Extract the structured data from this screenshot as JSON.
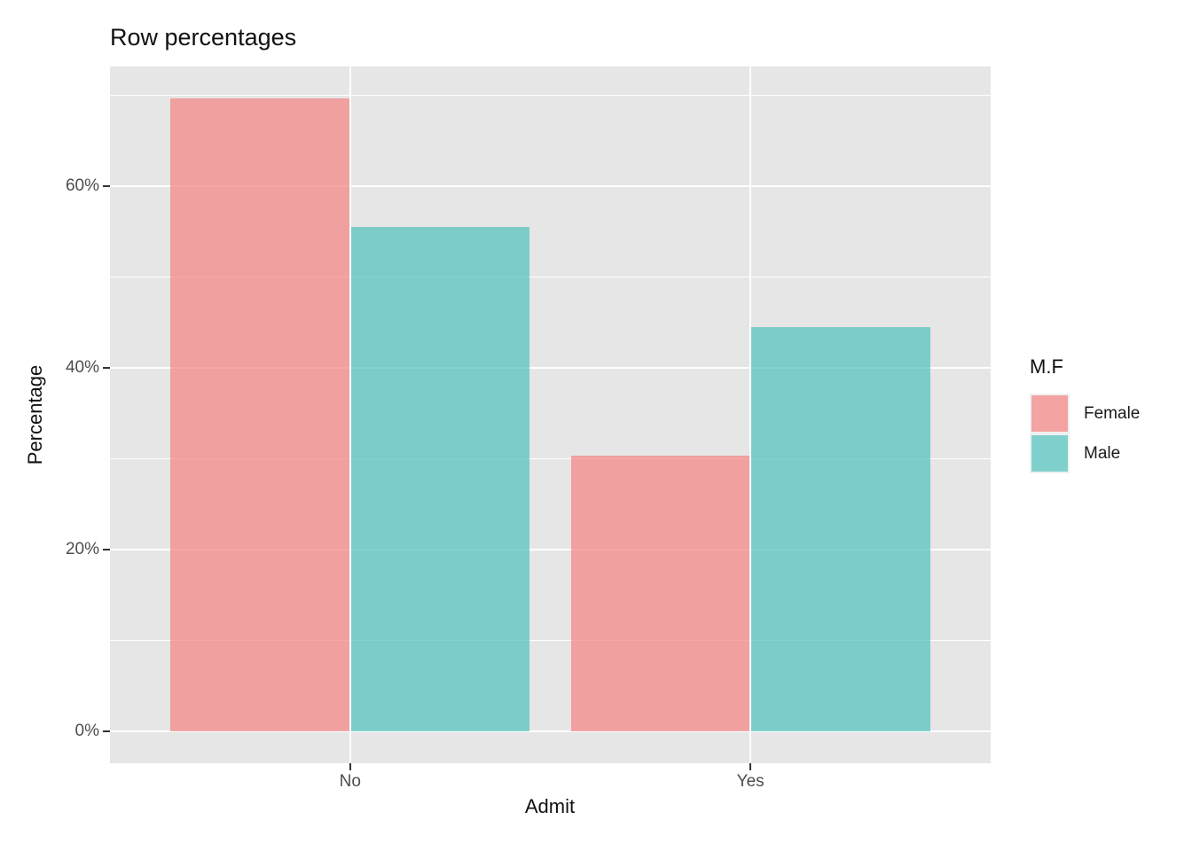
{
  "title": "Row percentages",
  "axes": {
    "x_title": "Admit",
    "y_title": "Percentage",
    "x_tick_labels": [
      "No",
      "Yes"
    ],
    "y_tick_labels": [
      "0%",
      "20%",
      "40%",
      "60%"
    ]
  },
  "legend": {
    "title": "M.F",
    "items": [
      {
        "label": "Female",
        "color": "rgba(242,133,131,0.72)"
      },
      {
        "label": "Male",
        "color": "rgba(83,195,190,0.72)"
      }
    ]
  },
  "chart_data": {
    "type": "bar",
    "mode": "grouped",
    "title": "Row percentages",
    "xlabel": "Admit",
    "ylabel": "Percentage",
    "categories": [
      "No",
      "Yes"
    ],
    "series": [
      {
        "name": "Female",
        "values": [
          69.65,
          30.35
        ],
        "color": "rgba(242,133,131,0.72)"
      },
      {
        "name": "Male",
        "values": [
          55.48,
          44.52
        ],
        "color": "rgba(83,195,190,0.72)"
      }
    ],
    "y_ticks_pct": [
      0,
      20,
      40,
      60
    ],
    "y_tick_labels": [
      "0%",
      "20%",
      "40%",
      "60%"
    ],
    "y_minor_ticks_pct": [
      10,
      30,
      50,
      70
    ],
    "ylim_pct": [
      -3.48,
      73.13
    ],
    "grid": true,
    "legend_position": "right",
    "panel_bg": "#E6E6E6",
    "grid_color": "#FFFFFF",
    "tick_label_color": "#4D4D4D",
    "text_color": "#111111"
  }
}
